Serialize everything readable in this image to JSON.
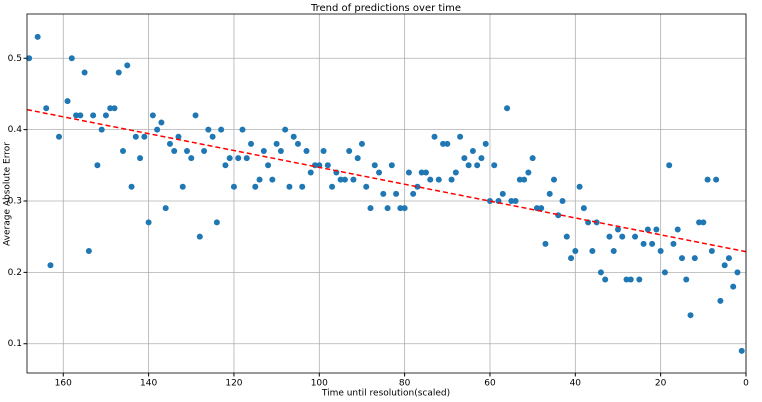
{
  "chart_data": {
    "type": "scatter",
    "title": "Trend of predictions over time",
    "x_label": "Time until resolution(scaled)",
    "y_label": "Average Absolute Error",
    "xlim": [
      168.5,
      0
    ],
    "ylim": [
      0.059,
      0.562
    ],
    "xticks": [
      160,
      140,
      120,
      100,
      80,
      60,
      40,
      20,
      0
    ],
    "yticks": [
      0.1,
      0.2,
      0.3,
      0.4,
      0.5
    ],
    "grid": true,
    "color": "#1f77b4",
    "x": [
      168,
      166,
      164,
      163,
      161,
      159,
      158,
      157,
      156,
      155,
      154,
      153,
      152,
      151,
      150,
      149,
      148,
      147,
      146,
      145,
      144,
      143,
      142,
      141,
      140,
      139,
      138,
      137,
      136,
      135,
      134,
      133,
      132,
      131,
      130,
      129,
      128,
      127,
      126,
      125,
      124,
      123,
      122,
      121,
      120,
      119,
      118,
      117,
      116,
      115,
      114,
      113,
      112,
      111,
      110,
      109,
      108,
      107,
      106,
      105,
      104,
      103,
      102,
      101,
      100,
      99,
      98,
      97,
      96,
      95,
      94,
      93,
      92,
      91,
      90,
      89,
      88,
      87,
      86,
      85,
      84,
      83,
      82,
      81,
      80,
      79,
      78,
      77,
      76,
      75,
      74,
      73,
      72,
      71,
      70,
      69,
      68,
      67,
      66,
      65,
      64,
      63,
      62,
      61,
      60,
      59,
      58,
      57,
      56,
      55,
      54,
      53,
      52,
      51,
      50,
      49,
      48,
      47,
      46,
      45,
      44,
      43,
      42,
      41,
      40,
      39,
      38,
      37,
      36,
      35,
      34,
      33,
      32,
      31,
      30,
      29,
      28,
      27,
      26,
      25,
      24,
      23,
      22,
      21,
      20,
      19,
      18,
      17,
      16,
      15,
      14,
      13,
      12,
      11,
      10,
      9,
      8,
      7,
      6,
      5,
      4,
      3,
      2,
      1
    ],
    "values": [
      0.5,
      0.53,
      0.43,
      0.21,
      0.39,
      0.44,
      0.5,
      0.42,
      0.42,
      0.48,
      0.23,
      0.42,
      0.35,
      0.4,
      0.42,
      0.43,
      0.43,
      0.48,
      0.37,
      0.49,
      0.32,
      0.39,
      0.36,
      0.39,
      0.27,
      0.42,
      0.4,
      0.41,
      0.29,
      0.38,
      0.37,
      0.39,
      0.32,
      0.37,
      0.36,
      0.42,
      0.25,
      0.37,
      0.4,
      0.39,
      0.27,
      0.4,
      0.35,
      0.36,
      0.32,
      0.36,
      0.4,
      0.36,
      0.38,
      0.32,
      0.33,
      0.37,
      0.35,
      0.33,
      0.38,
      0.37,
      0.4,
      0.32,
      0.39,
      0.38,
      0.32,
      0.37,
      0.34,
      0.35,
      0.35,
      0.37,
      0.35,
      0.32,
      0.34,
      0.33,
      0.33,
      0.37,
      0.33,
      0.36,
      0.38,
      0.32,
      0.29,
      0.35,
      0.34,
      0.31,
      0.29,
      0.35,
      0.31,
      0.29,
      0.29,
      0.34,
      0.31,
      0.32,
      0.34,
      0.34,
      0.33,
      0.39,
      0.33,
      0.38,
      0.38,
      0.33,
      0.34,
      0.39,
      0.36,
      0.35,
      0.37,
      0.35,
      0.36,
      0.38,
      0.3,
      0.35,
      0.3,
      0.31,
      0.43,
      0.3,
      0.3,
      0.33,
      0.33,
      0.34,
      0.36,
      0.29,
      0.29,
      0.24,
      0.31,
      0.33,
      0.28,
      0.3,
      0.25,
      0.22,
      0.23,
      0.32,
      0.29,
      0.27,
      0.23,
      0.27,
      0.2,
      0.19,
      0.25,
      0.23,
      0.26,
      0.25,
      0.19,
      0.19,
      0.25,
      0.19,
      0.24,
      0.26,
      0.24,
      0.26,
      0.23,
      0.2,
      0.35,
      0.24,
      0.26,
      0.22,
      0.19,
      0.14,
      0.22,
      0.27,
      0.27,
      0.33,
      0.23,
      0.33,
      0.16,
      0.21,
      0.22,
      0.18,
      0.2,
      0.09
    ],
    "trend": {
      "color": "#ff0000",
      "x": [
        168.5,
        0
      ],
      "values": [
        0.428,
        0.229
      ]
    }
  }
}
